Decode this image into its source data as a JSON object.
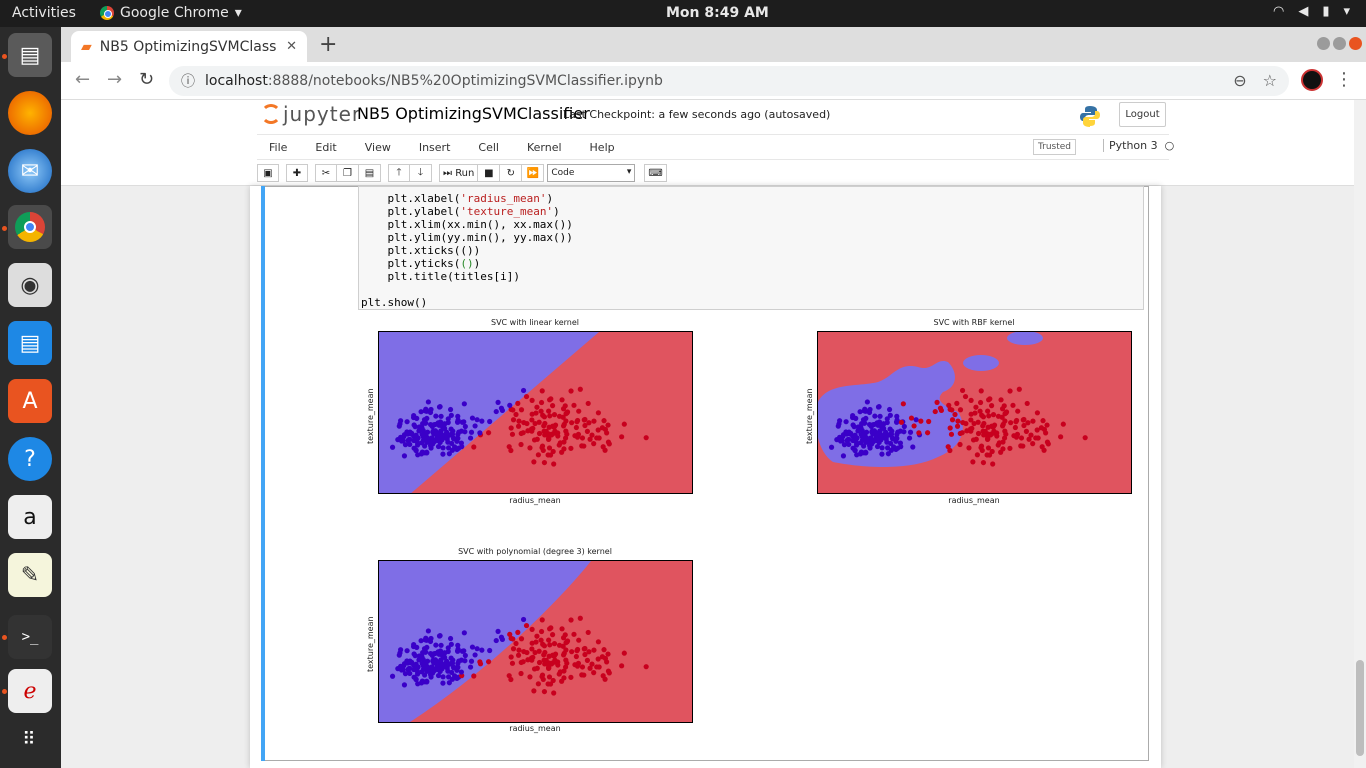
{
  "system": {
    "activities_label": "Activities",
    "app_name": "Google Chrome",
    "clock": "Mon  8:49 AM"
  },
  "browser": {
    "tab_title": "NB5 OptimizingSVMClass",
    "url_host": "localhost",
    "url_rest": ":8888/notebooks/NB5%20OptimizingSVMClassifier.ipynb"
  },
  "jupyter": {
    "logo_text": "jupyter",
    "notebook_title": "NB5 OptimizingSVMClassifier",
    "checkpoint": "Last Checkpoint: a few seconds ago   (autosaved)",
    "logout_label": "Logout",
    "trusted_label": "Trusted",
    "kernel_label": "Python 3",
    "menu": [
      "File",
      "Edit",
      "View",
      "Insert",
      "Cell",
      "Kernel",
      "Help"
    ],
    "run_label": "Run",
    "cell_type": "Code"
  },
  "code_lines": {
    "l1": "    plt.xlabel(",
    "l1s": "'radius_mean'",
    "l2": "    plt.ylabel(",
    "l2s": "'texture_mean'",
    "l3": "    plt.xlim(xx.min(), xx.max())",
    "l4": "    plt.ylim(yy.min(), yy.max())",
    "l5": "    plt.xticks(())",
    "l6a": "    plt.yticks(",
    "l6b": "()",
    "l7": "    plt.title(titles[i])",
    "l8": "plt.show()"
  },
  "plots": [
    {
      "title": "SVC with linear kernel",
      "xlabel": "radius_mean",
      "ylabel": "texture_mean"
    },
    {
      "title": "SVC with RBF kernel",
      "xlabel": "radius_mean",
      "ylabel": "texture_mean"
    },
    {
      "title": "SVC with polynomial (degree 3) kernel",
      "xlabel": "radius_mean",
      "ylabel": "texture_mean"
    }
  ],
  "colors": {
    "class_a_region": "#7f6ee6",
    "class_b_region": "#e0545f",
    "class_a_point": "#3a00c8",
    "class_b_point": "#c8001e",
    "cell_selected_bar": "#42a5f5"
  }
}
